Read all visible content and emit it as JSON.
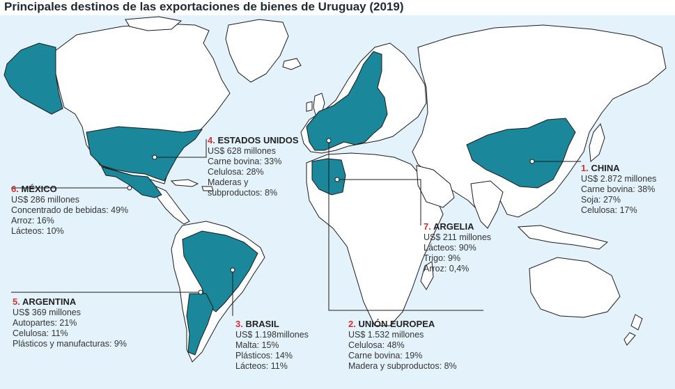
{
  "title": "Principales destinos de las exportaciones de bienes de Uruguay (2019)",
  "colors": {
    "ocean": "#e4f3fb",
    "land": "#ffffff",
    "highlight": "#1a879b",
    "border": "#1b1b1b",
    "rank": "#d5302b",
    "leader": "#1b1b1b"
  },
  "destinations": [
    {
      "id": "china",
      "rank": "1.",
      "name": "CHINA",
      "lines": [
        "US$ 2.872 millones",
        "Carne bovina: 38%",
        "Soja: 27%",
        "Celulosa: 17%"
      ]
    },
    {
      "id": "union-europea",
      "rank": "2.",
      "name": "UNIÓN EUROPEA",
      "lines": [
        "US$ 1.532 millones",
        "Celulosa: 48%",
        "Carne bovina: 19%",
        "Madera y subproductos: 8%"
      ]
    },
    {
      "id": "brasil",
      "rank": "3.",
      "name": "BRASIL",
      "lines": [
        "US$ 1.198millones",
        "Malta: 15%",
        "Plásticos: 14%",
        "Lácteos: 11%"
      ]
    },
    {
      "id": "estados-unidos",
      "rank": "4.",
      "name": "ESTADOS UNIDOS",
      "lines": [
        "US$ 628 millones",
        "Carne bovina: 33%",
        "Celulosa: 28%",
        "Maderas y",
        "subproductos: 8%"
      ]
    },
    {
      "id": "argentina",
      "rank": "5.",
      "name": "ARGENTINA",
      "lines": [
        "US$ 369 millones",
        "Autopartes: 21%",
        "Celulosa: 11%",
        "Plásticos y manufacturas: 9%"
      ]
    },
    {
      "id": "mexico",
      "rank": "6.",
      "name": "MÉXICO",
      "lines": [
        "US$ 286 millones",
        "Concentrado de bebidas: 49%",
        "Arroz: 16%",
        "Lácteos: 10%"
      ]
    },
    {
      "id": "argelia",
      "rank": "7.",
      "name": "ARGELIA",
      "lines": [
        "US$ 211 millones",
        "Lácteos: 90%",
        "Trigo: 9%",
        "Arroz: 0,4%"
      ]
    }
  ]
}
